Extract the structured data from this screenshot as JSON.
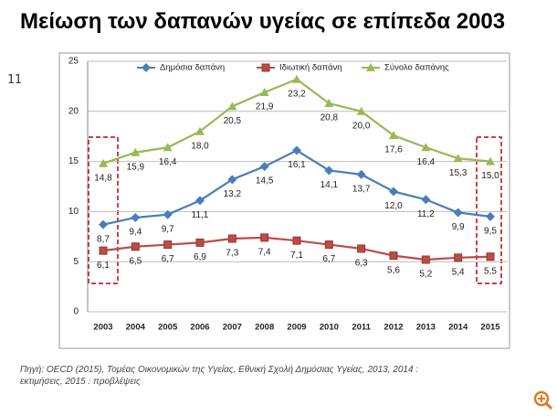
{
  "slide_number": "11",
  "source": "Πηγή: OECD (2015), Τομέας Οικονομικών της Υγείας, Εθνική Σχολή Δημόσιας Υγείας, 2013, 2014 : εκτιμήσεις,  2015 : προβλέψεις",
  "chart_data": {
    "type": "line",
    "title": "Μείωση των δαπανών υγείας σε επίπεδα 2003",
    "categories": [
      "2003",
      "2004",
      "2005",
      "2006",
      "2007",
      "2008",
      "2009",
      "2010",
      "2011",
      "2012",
      "2013",
      "2014",
      "2015"
    ],
    "series": [
      {
        "name": "Δημόσια δαπάνη",
        "color": "#4a7ebb",
        "marker": "diamond",
        "values": [
          8.7,
          9.4,
          9.7,
          11.1,
          13.2,
          14.5,
          16.1,
          14.1,
          13.7,
          12.0,
          11.2,
          9.9,
          9.5
        ],
        "value_labels": [
          "8,7",
          "9,4",
          "9,7",
          "11,1",
          "13,2",
          "14,5",
          "16,1",
          "14,1",
          "13,7",
          "12,0",
          "11,2",
          "9,9",
          "9,5"
        ]
      },
      {
        "name": "Ιδιωτική δαπάνη",
        "color": "#be4b48",
        "marker": "square",
        "values": [
          6.1,
          6.5,
          6.7,
          6.9,
          7.3,
          7.4,
          7.1,
          6.7,
          6.3,
          5.6,
          5.2,
          5.4,
          5.5
        ],
        "value_labels": [
          "6,1",
          "6,5",
          "6,7",
          "6,9",
          "7,3",
          "7,4",
          "7,1",
          "6,7",
          "6,3",
          "5,6",
          "5,2",
          "5,4",
          "5,5"
        ]
      },
      {
        "name": "Σύνολο δαπάνης",
        "color": "#98b954",
        "marker": "triangle",
        "values": [
          14.8,
          15.9,
          16.4,
          18.0,
          20.5,
          21.9,
          23.2,
          20.8,
          20.0,
          17.6,
          16.4,
          15.3,
          15.0
        ],
        "value_labels": [
          "14,8",
          "15,9",
          "16,4",
          "18,0",
          "20,5",
          "21,9",
          "23,2",
          "20,8",
          "20,0",
          "17,6",
          "16,4",
          "15,3",
          "15,0"
        ]
      }
    ],
    "ylim": [
      0,
      25
    ],
    "yticks": [
      0,
      5,
      10,
      15,
      20,
      25
    ],
    "grid": true,
    "legend": "top"
  }
}
